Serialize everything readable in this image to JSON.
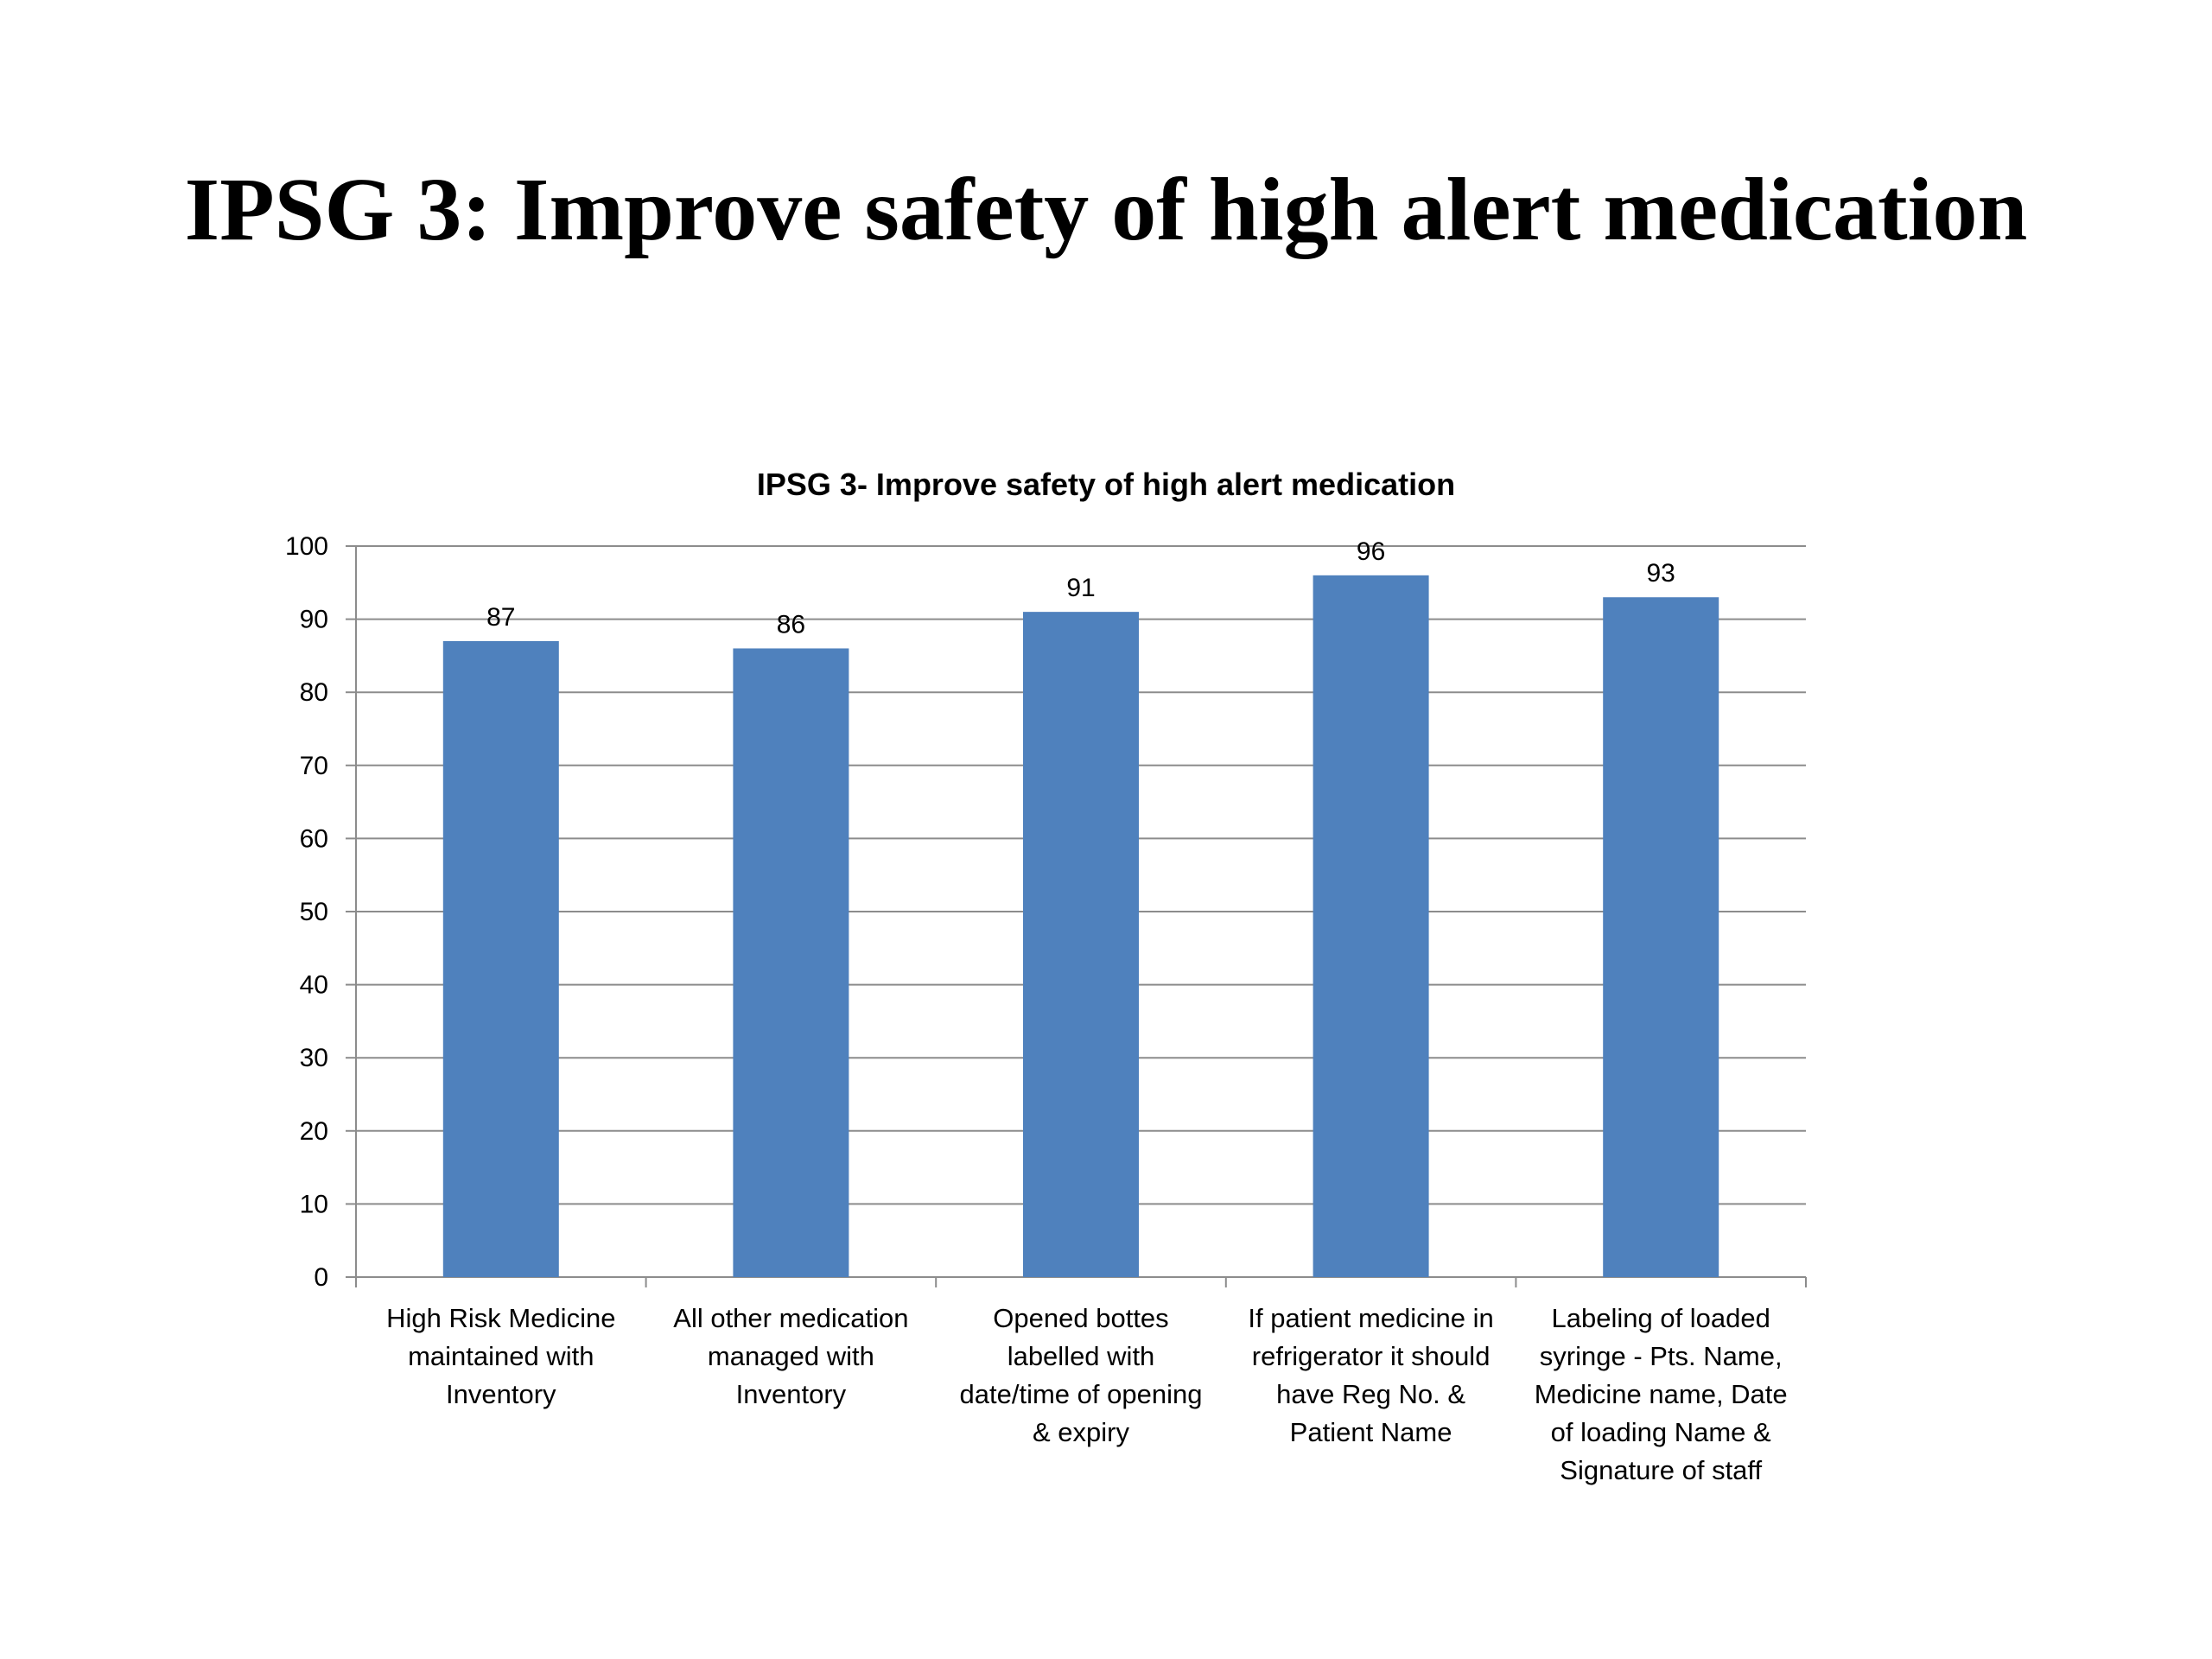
{
  "slide": {
    "title": "IPSG 3: Improve safety of high alert medication"
  },
  "chart_data": {
    "type": "bar",
    "title": "IPSG 3- Improve safety of high alert medication",
    "xlabel": "",
    "ylabel": "",
    "ylim": [
      0,
      100
    ],
    "yticks": [
      0,
      10,
      20,
      30,
      40,
      50,
      60,
      70,
      80,
      90,
      100
    ],
    "grid": true,
    "legend": "none",
    "bar_color": "#4F81BD",
    "categories": [
      [
        "High Risk Medicine",
        "maintained with",
        "Inventory"
      ],
      [
        "All other medication",
        "managed with",
        "Inventory"
      ],
      [
        "Opened bottes",
        "labelled with",
        "date/time of opening",
        "& expiry"
      ],
      [
        "If patient medicine in",
        "refrigerator it should",
        "have Reg No. &",
        "Patient Name"
      ],
      [
        "Labeling of loaded",
        "syringe - Pts. Name,",
        "Medicine name, Date",
        "of loading Name &",
        "Signature of staff"
      ]
    ],
    "values": [
      87,
      86,
      91,
      96,
      93
    ]
  }
}
